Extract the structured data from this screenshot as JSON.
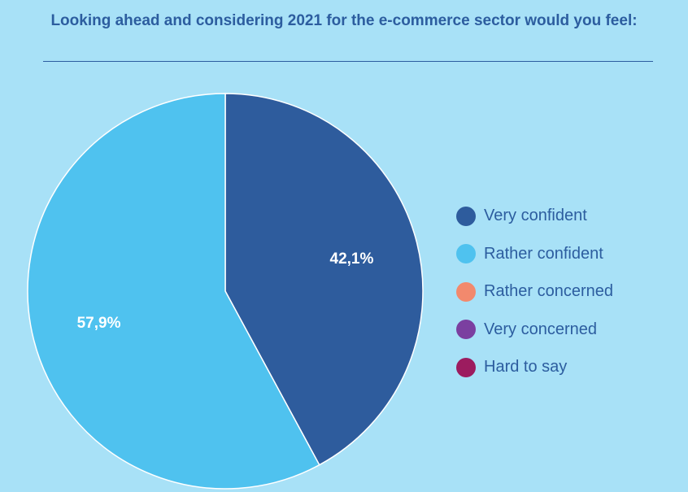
{
  "chart_data": {
    "type": "pie",
    "title": "Looking ahead and considering 2021 for the e-commerce sector would you feel:",
    "categories": [
      "Very confident",
      "Rather confident",
      "Rather concerned",
      "Very concerned",
      "Hard to say"
    ],
    "values": [
      42.1,
      57.9,
      0,
      0,
      0
    ],
    "value_labels": [
      "42,1%",
      "57,9%",
      "",
      "",
      ""
    ],
    "colors": [
      "#2e5c9d",
      "#4fc2ef",
      "#f2896d",
      "#7b3fa0",
      "#9c1c5f"
    ],
    "legend_position": "right"
  }
}
